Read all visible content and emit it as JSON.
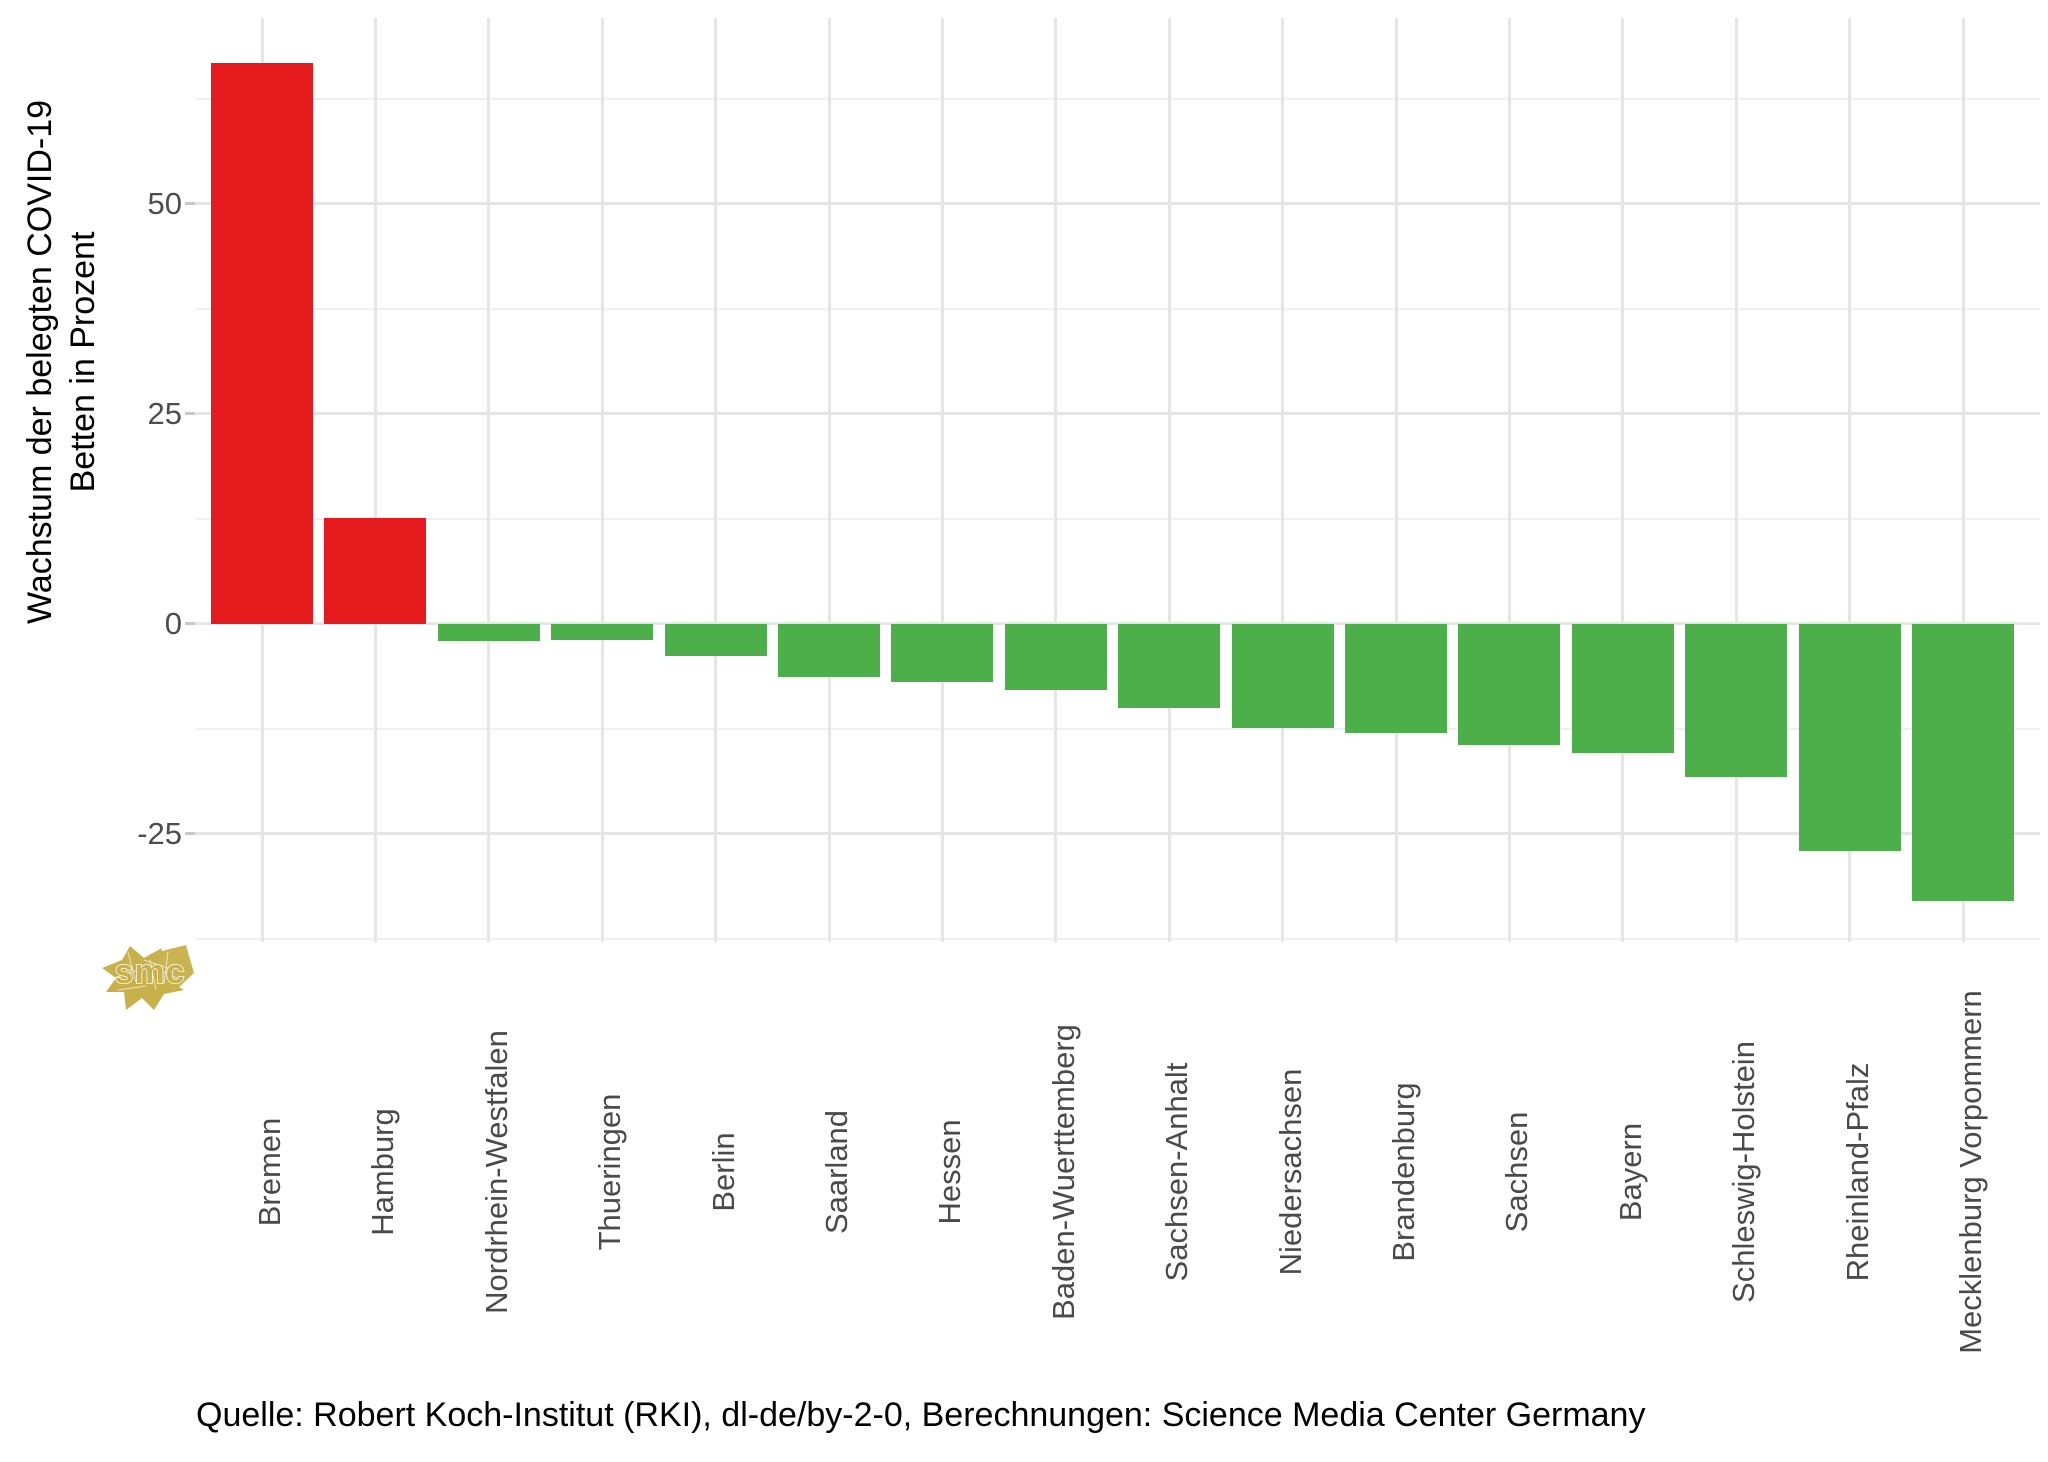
{
  "chart_data": {
    "type": "bar",
    "title": "",
    "ylabel_lines": [
      "Wachstum der belegten COVID-19",
      "Betten in Prozent"
    ],
    "categories": [
      "Bremen",
      "Hamburg",
      "Nordrhein-Westfalen",
      "Thueringen",
      "Berlin",
      "Saarland",
      "Hessen",
      "Baden-Wuerttemberg",
      "Sachsen-Anhalt",
      "Niedersachsen",
      "Brandenburg",
      "Sachsen",
      "Bayern",
      "Schleswig-Holstein",
      "Rheinland-Pfalz",
      "Mecklenburg Vorpommern"
    ],
    "values": [
      66.8,
      12.6,
      -2.1,
      -2.0,
      -3.9,
      -6.4,
      -7.0,
      -7.9,
      -10.0,
      -12.4,
      -13.0,
      -14.4,
      -15.4,
      -18.2,
      -27.1,
      -33.0
    ],
    "colors": {
      "positive": "#e41a1c",
      "negative": "#4daf4a"
    },
    "yticks": [
      {
        "label": "50",
        "value": 50
      },
      {
        "label": "25",
        "value": 25
      },
      {
        "label": "0",
        "value": 0
      },
      {
        "label": "-25",
        "value": -25
      }
    ],
    "minor_gridlines": [
      62.5,
      37.5,
      12.5,
      -12.5,
      -37.5
    ],
    "ylim": [
      -37.9,
      72.1
    ],
    "grid": "major-and-minor, light gray, no axis lines",
    "legend": "none",
    "xlabel": "",
    "ylabel": "Wachstum der belegten COVID-19 Betten in Prozent"
  },
  "caption": "Quelle: Robert Koch-Institut (RKI), dl-de/by-2-0, Berechnungen: Science Media Center Germany",
  "logo": {
    "text": "smc",
    "color": "#c8b14b"
  }
}
